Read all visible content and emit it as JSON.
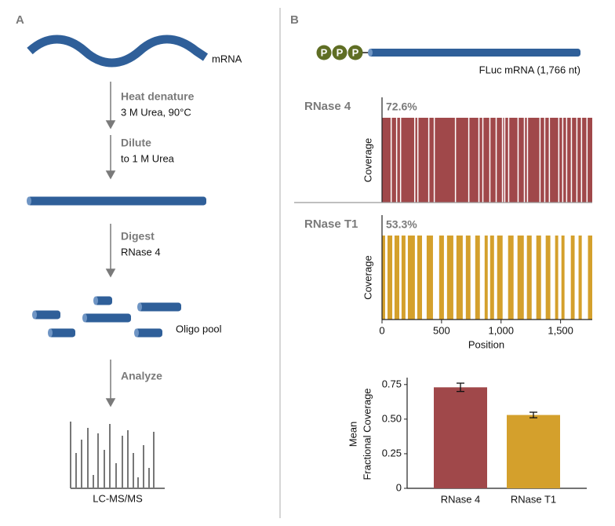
{
  "panel_a": {
    "label": "A",
    "mrna": "mRNA",
    "steps": [
      {
        "title": "Heat denature",
        "detail": "3 M Urea, 90°C"
      },
      {
        "title": "Dilute",
        "detail": "to 1 M Urea"
      },
      {
        "title": "Digest",
        "detail": "RNase 4"
      }
    ],
    "oligo": "Oligo pool",
    "analyze": "Analyze",
    "lcms": "LC-MS/MS"
  },
  "panel_b": {
    "label": "B",
    "cap": [
      "P",
      "P",
      "P"
    ],
    "transcript": "FLuc mRNA (1,766 nt)"
  },
  "chart_data": [
    {
      "type": "coverage",
      "xlabel": "Position",
      "ylabel": "Coverage",
      "xlim": [
        0,
        1766
      ],
      "xticks": [
        0,
        500,
        {
          "value": 1000,
          "label": "1,000"
        },
        {
          "value": 1500,
          "label": "1,500"
        }
      ],
      "tracks": [
        {
          "name": "RNase 4",
          "coverage": "72.6%",
          "color": "#a0484a",
          "gaps": [
            [
              72,
              80
            ],
            [
              118,
              126
            ],
            [
              151,
              160
            ],
            [
              270,
              280
            ],
            [
              296,
              303
            ],
            [
              388,
              396
            ],
            [
              434,
              442
            ],
            [
              612,
              620
            ],
            [
              724,
              733
            ],
            [
              809,
              816
            ],
            [
              842,
              850
            ],
            [
              901,
              909
            ],
            [
              954,
              962
            ],
            [
              1007,
              1013
            ],
            [
              1026,
              1033
            ],
            [
              1059,
              1066
            ],
            [
              1138,
              1145
            ],
            [
              1191,
              1198
            ],
            [
              1217,
              1224
            ],
            [
              1322,
              1330
            ],
            [
              1362,
              1369
            ],
            [
              1401,
              1408
            ],
            [
              1480,
              1487
            ],
            [
              1513,
              1520
            ],
            [
              1546,
              1553
            ],
            [
              1586,
              1593
            ],
            [
              1632,
              1639
            ],
            [
              1671,
              1678
            ],
            [
              1717,
              1725
            ]
          ]
        },
        {
          "name": "RNase T1",
          "coverage": "53.3%",
          "color": "#d4a02c",
          "gaps": [
            [
              26,
              46
            ],
            [
              86,
              105
            ],
            [
              145,
              164
            ],
            [
              197,
              217
            ],
            [
              276,
              296
            ],
            [
              336,
              375
            ],
            [
              428,
              480
            ],
            [
              520,
              546
            ],
            [
              599,
              625
            ],
            [
              678,
              704
            ],
            [
              743,
              783
            ],
            [
              822,
              862
            ],
            [
              888,
              908
            ],
            [
              941,
              967
            ],
            [
              1013,
              1059
            ],
            [
              1105,
              1138
            ],
            [
              1191,
              1217
            ],
            [
              1257,
              1296
            ],
            [
              1336,
              1375
            ],
            [
              1414,
              1454
            ],
            [
              1480,
              1507
            ],
            [
              1533,
              1586
            ],
            [
              1618,
              1651
            ],
            [
              1678,
              1730
            ]
          ]
        }
      ]
    },
    {
      "type": "bar",
      "ylabel": [
        "Mean",
        "Fractional Coverage"
      ],
      "categories": [
        "RNase 4",
        "RNase T1"
      ],
      "values": [
        0.73,
        0.53
      ],
      "errors": [
        0.03,
        0.02
      ],
      "colors": [
        "#a0484a",
        "#d4a02c"
      ],
      "ylim": [
        0,
        0.8
      ],
      "yticks": [
        0,
        0.25,
        {
          "value": 0.5,
          "label": "0.50"
        },
        0.75
      ]
    }
  ]
}
